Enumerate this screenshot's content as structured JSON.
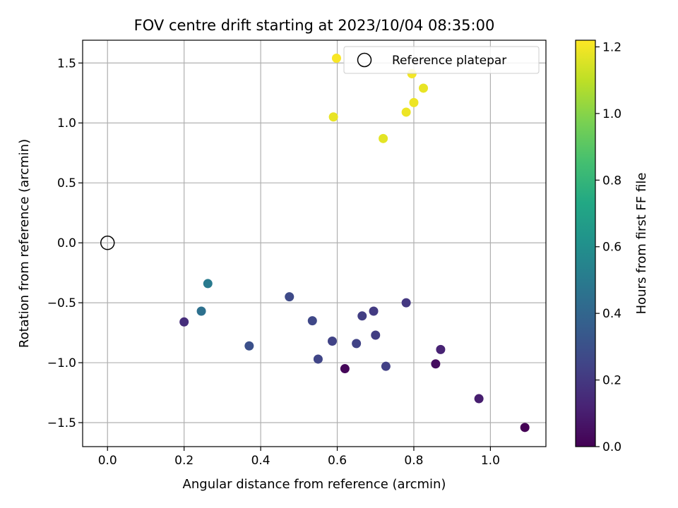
{
  "chart_data": {
    "type": "scatter",
    "title": "FOV centre drift starting at 2023/10/04 08:35:00",
    "xlabel": "Angular distance from reference (arcmin)",
    "ylabel": "Rotation from reference (arcmin)",
    "xlim": [
      -0.065,
      1.145
    ],
    "ylim": [
      -1.7,
      1.69
    ],
    "xticks": [
      0.0,
      0.2,
      0.4,
      0.6,
      0.8,
      1.0
    ],
    "xtick_labels": [
      "0.0",
      "0.2",
      "0.4",
      "0.6",
      "0.8",
      "1.0"
    ],
    "yticks": [
      -1.5,
      -1.0,
      -0.5,
      0.0,
      0.5,
      1.0,
      1.5
    ],
    "ytick_labels": [
      "−1.5",
      "−1.0",
      "−0.5",
      "0.0",
      "0.5",
      "1.0",
      "1.5"
    ],
    "grid": true,
    "legend": {
      "location": "top-right",
      "entries": [
        "Reference platepar"
      ]
    },
    "colorbar": {
      "label": "Hours from first FF file",
      "colormap": "viridis",
      "range": [
        0.0,
        1.22
      ],
      "ticks": [
        0.0,
        0.2,
        0.4,
        0.6,
        0.8,
        1.0,
        1.2
      ],
      "tick_labels": [
        "0.0",
        "0.2",
        "0.4",
        "0.6",
        "0.8",
        "1.0",
        "1.2"
      ]
    },
    "reference_point": {
      "name": "Reference platepar",
      "x": 0.0,
      "y": 0.0
    },
    "points": [
      {
        "x": 1.09,
        "y": -1.54,
        "hours": 0.0
      },
      {
        "x": 0.62,
        "y": -1.05,
        "hours": 0.02
      },
      {
        "x": 0.857,
        "y": -1.01,
        "hours": 0.04
      },
      {
        "x": 0.97,
        "y": -1.3,
        "hours": 0.1
      },
      {
        "x": 0.87,
        "y": -0.89,
        "hours": 0.12
      },
      {
        "x": 0.2,
        "y": -0.66,
        "hours": 0.16
      },
      {
        "x": 0.78,
        "y": -0.5,
        "hours": 0.2
      },
      {
        "x": 0.695,
        "y": -0.57,
        "hours": 0.21
      },
      {
        "x": 0.665,
        "y": -0.61,
        "hours": 0.22
      },
      {
        "x": 0.7,
        "y": -0.77,
        "hours": 0.22
      },
      {
        "x": 0.727,
        "y": -1.03,
        "hours": 0.23
      },
      {
        "x": 0.65,
        "y": -0.84,
        "hours": 0.24
      },
      {
        "x": 0.587,
        "y": -0.82,
        "hours": 0.24
      },
      {
        "x": 0.55,
        "y": -0.97,
        "hours": 0.25
      },
      {
        "x": 0.535,
        "y": -0.65,
        "hours": 0.26
      },
      {
        "x": 0.475,
        "y": -0.45,
        "hours": 0.27
      },
      {
        "x": 0.37,
        "y": -0.86,
        "hours": 0.3
      },
      {
        "x": 0.245,
        "y": -0.57,
        "hours": 0.45
      },
      {
        "x": 0.262,
        "y": -0.34,
        "hours": 0.5
      },
      {
        "x": 0.72,
        "y": 0.87,
        "hours": 1.17
      },
      {
        "x": 0.59,
        "y": 1.05,
        "hours": 1.18
      },
      {
        "x": 0.825,
        "y": 1.29,
        "hours": 1.18
      },
      {
        "x": 0.78,
        "y": 1.09,
        "hours": 1.19
      },
      {
        "x": 0.8,
        "y": 1.17,
        "hours": 1.19
      },
      {
        "x": 0.795,
        "y": 1.41,
        "hours": 1.2
      },
      {
        "x": 0.598,
        "y": 1.54,
        "hours": 1.21
      }
    ]
  }
}
